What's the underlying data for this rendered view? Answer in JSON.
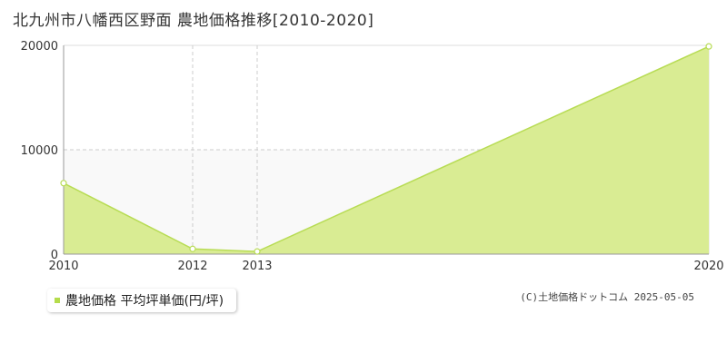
{
  "title": "北九州市八幡西区野面 農地価格推移[2010-2020]",
  "legend": {
    "label": "農地価格 平均坪単価(円/坪)"
  },
  "copyright": "(C)土地価格ドットコム 2025-05-05",
  "colors": {
    "fill": "#d9ec93",
    "line": "#b8dc55",
    "band": "#f9f9f9",
    "grid": "#cccccc",
    "axis": "#999999"
  },
  "chart_data": {
    "type": "area",
    "x": [
      "2010",
      "2012",
      "2013",
      "2020"
    ],
    "series": [
      {
        "name": "農地価格 平均坪単価(円/坪)",
        "values": [
          6800,
          500,
          250,
          19900
        ]
      }
    ],
    "y_ticks": [
      "0",
      "10000",
      "20000"
    ],
    "x_ticks": [
      "2010",
      "2012",
      "2013",
      "2020"
    ],
    "ylim": [
      0,
      20000
    ],
    "grid": true,
    "legend_position": "bottom-left"
  }
}
